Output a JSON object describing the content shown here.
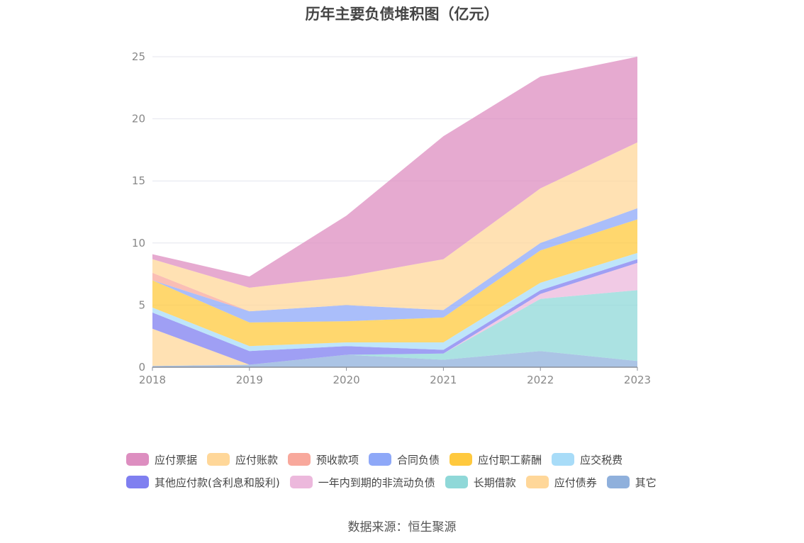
{
  "chart_data": {
    "type": "area",
    "stacked": true,
    "title": "历年主要负债堆积图（亿元）",
    "x": [
      "2018",
      "2019",
      "2020",
      "2021",
      "2022",
      "2023"
    ],
    "ylim": [
      0,
      25
    ],
    "yticks": [
      0,
      5,
      10,
      15,
      20,
      25
    ],
    "grid": true,
    "legend_position": "bottom",
    "series": [
      {
        "name": "其它",
        "color": "#8fb0dc",
        "values": [
          0.1,
          0.2,
          1.0,
          0.6,
          1.3,
          0.5
        ]
      },
      {
        "name": "应付债券",
        "color": "#ffd799",
        "values": [
          3.0,
          0.0,
          0.0,
          0.0,
          0.0,
          0.0
        ]
      },
      {
        "name": "长期借款",
        "color": "#8fd8d8",
        "values": [
          0.0,
          0.0,
          0.0,
          0.5,
          4.2,
          5.7
        ]
      },
      {
        "name": "一年内到期的非流动负债",
        "color": "#ecb8dc",
        "values": [
          0.0,
          0.0,
          0.0,
          0.0,
          0.4,
          2.2
        ]
      },
      {
        "name": "其他应付款(含利息和股利)",
        "color": "#7f7ff0",
        "values": [
          1.3,
          1.1,
          0.7,
          0.3,
          0.3,
          0.3
        ]
      },
      {
        "name": "应交税费",
        "color": "#a8dcf8",
        "values": [
          0.4,
          0.4,
          0.3,
          0.6,
          0.6,
          0.5
        ]
      },
      {
        "name": "应付职工薪酬",
        "color": "#ffc93e",
        "values": [
          2.2,
          1.9,
          1.7,
          2.0,
          2.6,
          2.7
        ]
      },
      {
        "name": "合同负债",
        "color": "#8ea8f8",
        "values": [
          0.0,
          0.9,
          1.3,
          0.6,
          0.6,
          0.9
        ]
      },
      {
        "name": "预收款项",
        "color": "#f8a89c",
        "values": [
          0.6,
          0.0,
          0.0,
          0.0,
          0.0,
          0.0
        ]
      },
      {
        "name": "应付账款",
        "color": "#ffd799",
        "values": [
          1.1,
          1.9,
          2.3,
          4.1,
          4.4,
          5.3
        ]
      },
      {
        "name": "应付票据",
        "color": "#dd8ec0",
        "values": [
          0.4,
          0.9,
          4.9,
          9.9,
          9.0,
          6.9
        ]
      }
    ]
  },
  "legend": {
    "row1": [
      {
        "label": "应付票据",
        "color": "#dd8ec0"
      },
      {
        "label": "应付账款",
        "color": "#ffd799"
      },
      {
        "label": "预收款项",
        "color": "#f8a89c"
      },
      {
        "label": "合同负债",
        "color": "#8ea8f8"
      },
      {
        "label": "应付职工薪酬",
        "color": "#ffc93e"
      },
      {
        "label": "应交税费",
        "color": "#a8dcf8"
      }
    ],
    "row2": [
      {
        "label": "其他应付款(含利息和股利)",
        "color": "#7f7ff0"
      },
      {
        "label": "一年内到期的非流动负债",
        "color": "#ecb8dc"
      },
      {
        "label": "长期借款",
        "color": "#8fd8d8"
      },
      {
        "label": "应付债券",
        "color": "#ffd799"
      },
      {
        "label": "其它",
        "color": "#8fb0dc"
      }
    ]
  },
  "source": "数据来源：恒生聚源"
}
